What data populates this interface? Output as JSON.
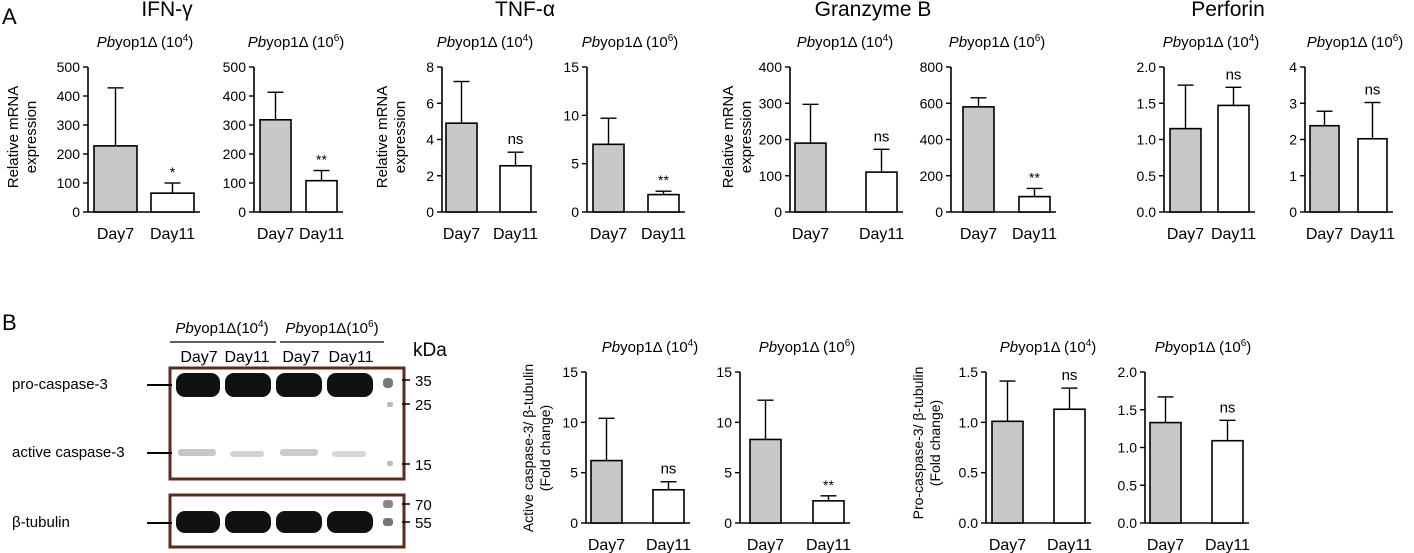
{
  "panel_a": {
    "label": "A",
    "groups": [
      {
        "title": "IFN-γ"
      },
      {
        "title": "TNF-α"
      },
      {
        "title": "Granzyme B"
      },
      {
        "title": "Perforin"
      }
    ],
    "ylabel_line1": "Relative mRNA",
    "ylabel_line2": "expression"
  },
  "panel_b": {
    "label": "B",
    "blot": {
      "header_groups": [
        {
          "italic": "Pb",
          "rest": "yop1Δ(10",
          "sup": "4",
          "tail": ")"
        },
        {
          "italic": "Pb",
          "rest": "yop1Δ(10",
          "sup": "6",
          "tail": ")"
        }
      ],
      "lanes": [
        "Day7",
        "Day11",
        "Day7",
        "Day11"
      ],
      "kda_label": "kDa",
      "row_labels": [
        "pro-caspase-3",
        "active caspase-3",
        "β-tubulin"
      ],
      "markers_top": [
        "35",
        "25",
        "15"
      ],
      "markers_bottom": [
        "70",
        "55"
      ]
    },
    "active_ylabel_line1": "Active caspase-3/ β-tubulin",
    "active_ylabel_line2": "(Fold change)",
    "pro_ylabel_line1": "Pro-caspase-3/ β-tubulin",
    "pro_ylabel_line2": "(Fold change)"
  },
  "chart_data": [
    {
      "type": "bar",
      "title": "Pbyop1Δ (10^4)",
      "group": "IFN-γ",
      "categories": [
        "Day7",
        "Day11"
      ],
      "values": [
        228,
        65
      ],
      "errors": [
        200,
        35
      ],
      "significance": "*",
      "ylim": [
        0,
        500
      ],
      "yticks": [
        "0",
        "100",
        "200",
        "300",
        "400",
        "500"
      ],
      "ylabel": "Relative mRNA expression",
      "title_parts": {
        "italic": "Pb",
        "rest": "yop1Δ (10",
        "sup": "4",
        "tail": ")"
      }
    },
    {
      "type": "bar",
      "title": "Pbyop1Δ (10^6)",
      "group": "IFN-γ",
      "categories": [
        "Day7",
        "Day11"
      ],
      "values": [
        318,
        108
      ],
      "errors": [
        95,
        35
      ],
      "significance": "**",
      "ylim": [
        0,
        500
      ],
      "yticks": [
        "0",
        "100",
        "200",
        "300",
        "400",
        "500"
      ],
      "ylabel": "",
      "title_parts": {
        "italic": "Pb",
        "rest": "yop1Δ (10",
        "sup": "6",
        "tail": ")"
      }
    },
    {
      "type": "bar",
      "title": "Pbyop1Δ (10^4)",
      "group": "TNF-α",
      "categories": [
        "Day7",
        "Day11"
      ],
      "values": [
        4.9,
        2.55
      ],
      "errors": [
        2.3,
        0.75
      ],
      "significance": "ns",
      "ylim": [
        0,
        8
      ],
      "yticks": [
        "0",
        "2",
        "4",
        "6",
        "8"
      ],
      "ylabel": "Relative mRNA expression",
      "title_parts": {
        "italic": "Pb",
        "rest": "yop1Δ (10",
        "sup": "4",
        "tail": ")"
      }
    },
    {
      "type": "bar",
      "title": "Pbyop1Δ (10^6)",
      "group": "TNF-α",
      "categories": [
        "Day7",
        "Day11"
      ],
      "values": [
        7.0,
        1.8
      ],
      "errors": [
        2.7,
        0.35
      ],
      "significance": "**",
      "ylim": [
        0,
        15
      ],
      "yticks": [
        "0",
        "5",
        "10",
        "15"
      ],
      "ylabel": "",
      "title_parts": {
        "italic": "Pb",
        "rest": "yop1Δ (10",
        "sup": "6",
        "tail": ")"
      }
    },
    {
      "type": "bar",
      "title": "Pbyop1Δ (10^4)",
      "group": "Granzyme B",
      "categories": [
        "Day7",
        "Day11"
      ],
      "values": [
        190,
        110
      ],
      "errors": [
        107,
        63
      ],
      "significance": "ns",
      "ylim": [
        0,
        400
      ],
      "yticks": [
        "0",
        "100",
        "200",
        "300",
        "400"
      ],
      "ylabel": "Relative mRNA expression",
      "title_parts": {
        "italic": "Pb",
        "rest": "yop1Δ (10",
        "sup": "4",
        "tail": ")"
      }
    },
    {
      "type": "bar",
      "title": "Pbyop1Δ (10^6)",
      "group": "Granzyme B",
      "categories": [
        "Day7",
        "Day11"
      ],
      "values": [
        580,
        85
      ],
      "errors": [
        50,
        45
      ],
      "significance": "**",
      "ylim": [
        0,
        800
      ],
      "yticks": [
        "0",
        "200",
        "400",
        "600",
        "800"
      ],
      "ylabel": "",
      "title_parts": {
        "italic": "Pb",
        "rest": "yop1Δ (10",
        "sup": "6",
        "tail": ")"
      }
    },
    {
      "type": "bar",
      "title": "Pbyop1Δ (10^4)",
      "group": "Perforin",
      "categories": [
        "Day7",
        "Day11"
      ],
      "values": [
        1.15,
        1.47
      ],
      "errors": [
        0.6,
        0.25
      ],
      "significance": "ns",
      "ylim": [
        0,
        2.0
      ],
      "yticks": [
        "0.0",
        "0.5",
        "1.0",
        "1.5",
        "2.0"
      ],
      "ylabel": "",
      "title_parts": {
        "italic": "Pb",
        "rest": "yop1Δ (10",
        "sup": "4",
        "tail": ")"
      }
    },
    {
      "type": "bar",
      "title": "Pbyop1Δ (10^6)",
      "group": "Perforin",
      "categories": [
        "Day7",
        "Day11"
      ],
      "values": [
        2.38,
        2.02
      ],
      "errors": [
        0.4,
        1.0
      ],
      "significance": "ns",
      "ylim": [
        0,
        4
      ],
      "yticks": [
        "0",
        "1",
        "2",
        "3",
        "4"
      ],
      "ylabel": "",
      "title_parts": {
        "italic": "Pb",
        "rest": "yop1Δ (10",
        "sup": "6",
        "tail": ")"
      }
    },
    {
      "type": "bar",
      "title": "Pbyop1Δ (10^4)",
      "group": "Active caspase-3",
      "categories": [
        "Day7",
        "Day11"
      ],
      "values": [
        6.2,
        3.3
      ],
      "errors": [
        4.2,
        0.8
      ],
      "significance": "ns",
      "ylim": [
        0,
        15
      ],
      "yticks": [
        "0",
        "5",
        "10",
        "15"
      ],
      "ylabel": "Active caspase-3/ β-tubulin (Fold change)",
      "title_parts": {
        "italic": "Pb",
        "rest": "yop1Δ (10",
        "sup": "4",
        "tail": ")"
      }
    },
    {
      "type": "bar",
      "title": "Pbyop1Δ (10^6)",
      "group": "Active caspase-3",
      "categories": [
        "Day7",
        "Day11"
      ],
      "values": [
        8.3,
        2.2
      ],
      "errors": [
        3.9,
        0.5
      ],
      "significance": "**",
      "ylim": [
        0,
        15
      ],
      "yticks": [
        "0",
        "5",
        "10",
        "15"
      ],
      "ylabel": "",
      "title_parts": {
        "italic": "Pb",
        "rest": "yop1Δ (10",
        "sup": "6",
        "tail": ")"
      }
    },
    {
      "type": "bar",
      "title": "Pbyop1Δ (10^4)",
      "group": "Pro-caspase-3",
      "categories": [
        "Day7",
        "Day11"
      ],
      "values": [
        1.01,
        1.13
      ],
      "errors": [
        0.4,
        0.21
      ],
      "significance": "ns",
      "ylim": [
        0,
        1.5
      ],
      "yticks": [
        "0.0",
        "0.5",
        "1.0",
        "1.5"
      ],
      "ylabel": "Pro-caspase-3/ β-tubulin (Fold change)",
      "title_parts": {
        "italic": "Pb",
        "rest": "yop1Δ (10",
        "sup": "4",
        "tail": ")"
      }
    },
    {
      "type": "bar",
      "title": "Pbyop1Δ (10^6)",
      "group": "Pro-caspase-3",
      "categories": [
        "Day7",
        "Day11"
      ],
      "values": [
        1.33,
        1.09
      ],
      "errors": [
        0.34,
        0.27
      ],
      "significance": "ns",
      "ylim": [
        0,
        2.0
      ],
      "yticks": [
        "0.0",
        "0.5",
        "1.0",
        "1.5",
        "2.0"
      ],
      "ylabel": "",
      "title_parts": {
        "italic": "Pb",
        "rest": "yop1Δ (10",
        "sup": "6",
        "tail": ")"
      }
    }
  ]
}
